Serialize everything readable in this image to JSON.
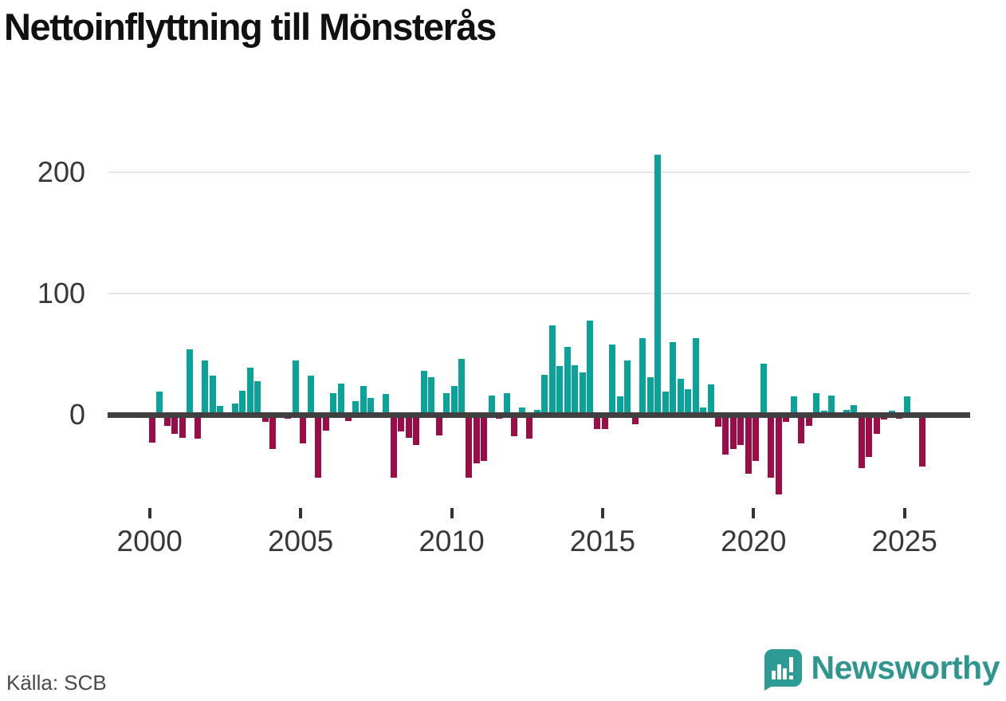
{
  "title": "Nettoinflyttning till Mönsterås",
  "source": "Källa: SCB",
  "brand": {
    "name": "Newsworthy",
    "logo_icon": "bar-chart-exclamation-icon",
    "badge_color": "#2b9b93",
    "wordmark_color": "#2e968e"
  },
  "colors": {
    "positive_bar": "#0ba29a",
    "negative_bar": "#9b0c49",
    "axis": "#404040",
    "gridline": "#e7e7e7",
    "tick_text": "#383838",
    "title_text": "#111111",
    "source_text": "#4a4a4a"
  },
  "chart_data": {
    "type": "bar",
    "title": "Nettoinflyttning till Mönsterås",
    "frequency": "quarterly",
    "start": "2000Q1",
    "end": "2025Q3",
    "grid": "horizontal",
    "legend": "none",
    "xlabel": "",
    "ylabel": "",
    "y_ticks": [
      0,
      100,
      200
    ],
    "y_tick_labels": [
      "0",
      "100",
      "200"
    ],
    "ylim": [
      -75,
      235
    ],
    "x_tick_years": [
      2000,
      2005,
      2010,
      2015,
      2020,
      2025
    ],
    "x_tick_labels": [
      "2000",
      "2005",
      "2010",
      "2015",
      "2020",
      "2025"
    ],
    "categories": [
      "2000Q1",
      "2000Q2",
      "2000Q3",
      "2000Q4",
      "2001Q1",
      "2001Q2",
      "2001Q3",
      "2001Q4",
      "2002Q1",
      "2002Q2",
      "2002Q3",
      "2002Q4",
      "2003Q1",
      "2003Q2",
      "2003Q3",
      "2003Q4",
      "2004Q1",
      "2004Q2",
      "2004Q3",
      "2004Q4",
      "2005Q1",
      "2005Q2",
      "2005Q3",
      "2005Q4",
      "2006Q1",
      "2006Q2",
      "2006Q3",
      "2006Q4",
      "2007Q1",
      "2007Q2",
      "2007Q3",
      "2007Q4",
      "2008Q1",
      "2008Q2",
      "2008Q3",
      "2008Q4",
      "2009Q1",
      "2009Q2",
      "2009Q3",
      "2009Q4",
      "2010Q1",
      "2010Q2",
      "2010Q3",
      "2010Q4",
      "2011Q1",
      "2011Q2",
      "2011Q3",
      "2011Q4",
      "2012Q1",
      "2012Q2",
      "2012Q3",
      "2012Q4",
      "2013Q1",
      "2013Q2",
      "2013Q3",
      "2013Q4",
      "2014Q1",
      "2014Q2",
      "2014Q3",
      "2014Q4",
      "2015Q1",
      "2015Q2",
      "2015Q3",
      "2015Q4",
      "2016Q1",
      "2016Q2",
      "2016Q3",
      "2016Q4",
      "2017Q1",
      "2017Q2",
      "2017Q3",
      "2017Q4",
      "2018Q1",
      "2018Q2",
      "2018Q3",
      "2018Q4",
      "2019Q1",
      "2019Q2",
      "2019Q3",
      "2019Q4",
      "2020Q1",
      "2020Q2",
      "2020Q3",
      "2020Q4",
      "2021Q1",
      "2021Q2",
      "2021Q3",
      "2021Q4",
      "2022Q1",
      "2022Q2",
      "2022Q3",
      "2022Q4",
      "2023Q1",
      "2023Q2",
      "2023Q3",
      "2023Q4",
      "2024Q1",
      "2024Q2",
      "2024Q3",
      "2024Q4",
      "2025Q1",
      "2025Q2",
      "2025Q3"
    ],
    "values": [
      -23,
      19,
      -9,
      -16,
      -19,
      54,
      -20,
      45,
      32,
      7,
      0,
      9,
      20,
      39,
      28,
      -6,
      -28,
      -2,
      -3,
      45,
      -24,
      32,
      -52,
      -13,
      18,
      26,
      -5,
      11,
      24,
      14,
      0,
      17,
      -52,
      -14,
      -19,
      -25,
      36,
      31,
      -17,
      18,
      24,
      46,
      -52,
      -40,
      -38,
      16,
      -3,
      18,
      -18,
      6,
      -20,
      4,
      33,
      74,
      40,
      56,
      41,
      35,
      78,
      -12,
      -12,
      58,
      15,
      45,
      -8,
      63,
      31,
      215,
      19,
      60,
      30,
      21,
      63,
      6,
      25,
      -10,
      -33,
      -28,
      -25,
      -49,
      -38,
      42,
      -52,
      -66,
      -6,
      15,
      -24,
      -9,
      18,
      3,
      16,
      0,
      4,
      8,
      -44,
      -35,
      -16,
      -4,
      3,
      -3,
      15,
      0,
      -43
    ]
  }
}
